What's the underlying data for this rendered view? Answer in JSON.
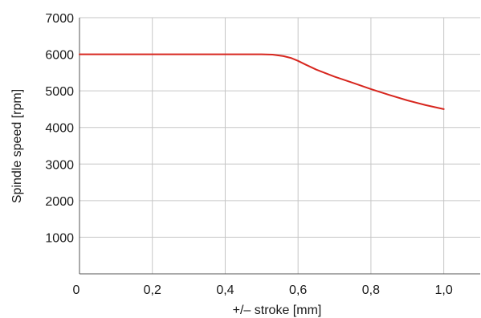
{
  "chart_data": {
    "type": "line",
    "title": "",
    "xlabel": "+/– stroke [mm]",
    "ylabel": "Spindle speed [rpm]",
    "xlim": [
      0,
      1.1
    ],
    "ylim": [
      0,
      7000
    ],
    "grid": true,
    "x_ticks": [
      {
        "value": 0,
        "label": "0"
      },
      {
        "value": 0.2,
        "label": "0,2"
      },
      {
        "value": 0.4,
        "label": "0,4"
      },
      {
        "value": 0.6,
        "label": "0,6"
      },
      {
        "value": 0.8,
        "label": "0,8"
      },
      {
        "value": 1.0,
        "label": "1,0"
      }
    ],
    "y_ticks": [
      {
        "value": 1000,
        "label": "1000"
      },
      {
        "value": 2000,
        "label": "2000"
      },
      {
        "value": 3000,
        "label": "3000"
      },
      {
        "value": 4000,
        "label": "4000"
      },
      {
        "value": 5000,
        "label": "5000"
      },
      {
        "value": 6000,
        "label": "6000"
      },
      {
        "value": 7000,
        "label": "7000"
      }
    ],
    "series": [
      {
        "color": "#d7261e",
        "x": [
          0,
          0.1,
          0.2,
          0.3,
          0.4,
          0.5,
          0.53,
          0.56,
          0.58,
          0.6,
          0.62,
          0.65,
          0.7,
          0.75,
          0.8,
          0.85,
          0.9,
          0.95,
          1.0
        ],
        "y": [
          6000,
          6000,
          6000,
          6000,
          6000,
          6000,
          5990,
          5950,
          5900,
          5820,
          5720,
          5580,
          5390,
          5220,
          5050,
          4890,
          4740,
          4610,
          4500
        ]
      }
    ]
  }
}
